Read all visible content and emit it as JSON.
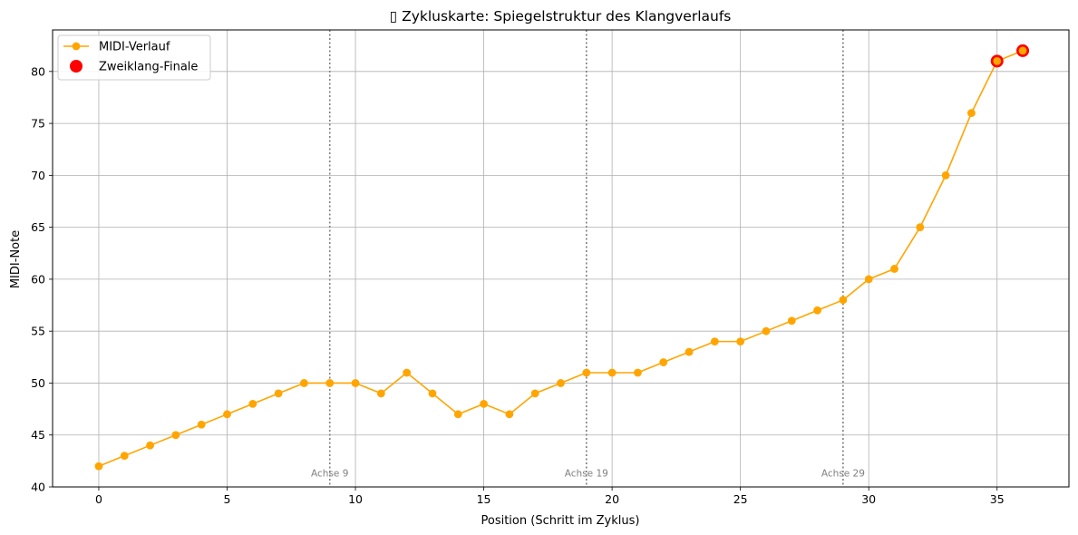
{
  "chart_data": {
    "type": "line",
    "title": "▯ Zykluskarte: Spiegelstruktur des Klangverlaufs",
    "xlabel": "Position (Schritt im Zyklus)",
    "ylabel": "MIDI-Note",
    "xlim": [
      -1.8,
      37.8
    ],
    "ylim": [
      40,
      84
    ],
    "xticks": [
      0,
      5,
      10,
      15,
      20,
      25,
      30,
      35
    ],
    "yticks": [
      40,
      45,
      50,
      55,
      60,
      65,
      70,
      75,
      80
    ],
    "grid": true,
    "legend_position": "upper-left",
    "series": [
      {
        "name": "MIDI-Verlauf",
        "type": "line",
        "color": "#ffa500",
        "marker": "circle",
        "x": [
          0,
          1,
          2,
          3,
          4,
          5,
          6,
          7,
          8,
          9,
          10,
          11,
          12,
          13,
          14,
          15,
          16,
          17,
          18,
          19,
          20,
          21,
          22,
          23,
          24,
          25,
          26,
          27,
          28,
          29,
          30,
          31,
          32,
          33,
          34,
          35,
          36
        ],
        "y": [
          42,
          43,
          44,
          45,
          46,
          47,
          48,
          49,
          50,
          50,
          50,
          49,
          51,
          49,
          47,
          48,
          47,
          49,
          50,
          51,
          51,
          51,
          52,
          53,
          54,
          54,
          55,
          56,
          57,
          58,
          60,
          61,
          65,
          70,
          76,
          81,
          82
        ]
      },
      {
        "name": "Zweiklang-Finale",
        "type": "scatter",
        "color": "#ff0000",
        "marker": "circle",
        "x": [
          35,
          36
        ],
        "y": [
          81,
          82
        ]
      }
    ],
    "annotations": [
      {
        "x": 9,
        "label": "Achse 9"
      },
      {
        "x": 19,
        "label": "Achse 19"
      },
      {
        "x": 29,
        "label": "Achse 29"
      }
    ],
    "annotation_style": {
      "color": "#808080",
      "linestyle": "dotted"
    }
  }
}
